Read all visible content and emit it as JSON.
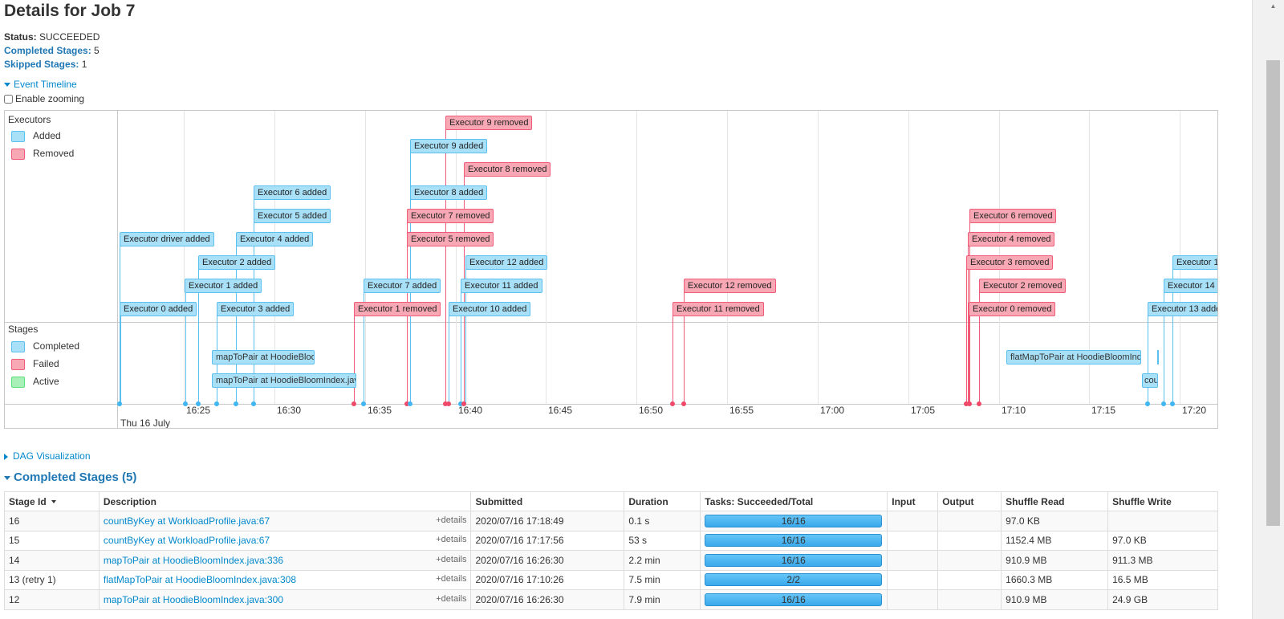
{
  "page_title": "Details for Job 7",
  "summary": {
    "status_label": "Status:",
    "status_value": "SUCCEEDED",
    "completed_label": "Completed Stages:",
    "completed_value": "5",
    "skipped_label": "Skipped Stages:",
    "skipped_value": "1"
  },
  "event_timeline_label": "Event Timeline",
  "enable_zooming_label": "Enable zooming",
  "timeline": {
    "executors_title": "Executors",
    "stages_title": "Stages",
    "executor_legend": [
      "Added",
      "Removed"
    ],
    "stage_legend": [
      "Completed",
      "Failed",
      "Active"
    ],
    "axis_ticks": [
      "16:25",
      "16:30",
      "16:35",
      "16:40",
      "16:45",
      "16:50",
      "16:55",
      "17:00",
      "17:05",
      "17:10",
      "17:15",
      "17:20"
    ],
    "date_label": "Thu 16 July",
    "executor_events": [
      "Executor 0 added",
      "Executor 1 added",
      "Executor 2 added",
      "Executor 3 added",
      "Executor 4 added",
      "Executor 5 added",
      "Executor 6 added",
      "Executor driver added",
      "Executor 7 added",
      "Executor 1 removed",
      "Executor 9 removed",
      "Executor 9 added",
      "Executor 8 removed",
      "Executor 8 added",
      "Executor 7 removed",
      "Executor 5 removed",
      "Executor 12 added",
      "Executor 11 added",
      "Executor 10 added",
      "Executor 12 removed",
      "Executor 11 removed",
      "Executor 6 removed",
      "Executor 4 removed",
      "Executor 3 removed",
      "Executor 2 removed",
      "Executor 0 removed",
      "Executor 1",
      "Executor 14 a",
      "Executor 13 added"
    ],
    "stage_events": [
      "mapToPair at HoodieBloom",
      "mapToPair at HoodieBloomIndex.java",
      "flatMapToPair at HoodieBloomInde",
      "cou"
    ]
  },
  "dag_label": "DAG Visualization",
  "completed_stages_title": "Completed Stages (5)",
  "table": {
    "headers": [
      "Stage Id",
      "Description",
      "Submitted",
      "Duration",
      "Tasks: Succeeded/Total",
      "Input",
      "Output",
      "Shuffle Read",
      "Shuffle Write"
    ],
    "details_label": "+details",
    "rows": [
      {
        "id": "16",
        "desc": "countByKey at WorkloadProfile.java:67",
        "submitted": "2020/07/16 17:18:49",
        "duration": "0.1 s",
        "tasks": "16/16",
        "tasks_fraction": 1.0,
        "input": "",
        "output": "",
        "shuffle_read": "97.0 KB",
        "shuffle_write": ""
      },
      {
        "id": "15",
        "desc": "countByKey at WorkloadProfile.java:67",
        "submitted": "2020/07/16 17:17:56",
        "duration": "53 s",
        "tasks": "16/16",
        "tasks_fraction": 1.0,
        "input": "",
        "output": "",
        "shuffle_read": "1152.4 MB",
        "shuffle_write": "97.0 KB"
      },
      {
        "id": "14",
        "desc": "mapToPair at HoodieBloomIndex.java:336",
        "submitted": "2020/07/16 16:26:30",
        "duration": "2.2 min",
        "tasks": "16/16",
        "tasks_fraction": 1.0,
        "input": "",
        "output": "",
        "shuffle_read": "910.9 MB",
        "shuffle_write": "911.3 MB"
      },
      {
        "id": "13 (retry 1)",
        "desc": "flatMapToPair at HoodieBloomIndex.java:308",
        "submitted": "2020/07/16 17:10:26",
        "duration": "7.5 min",
        "tasks": "2/2",
        "tasks_fraction": 1.0,
        "input": "",
        "output": "",
        "shuffle_read": "1660.3 MB",
        "shuffle_write": "16.5 MB"
      },
      {
        "id": "12",
        "desc": "mapToPair at HoodieBloomIndex.java:300",
        "submitted": "2020/07/16 16:26:30",
        "duration": "7.9 min",
        "tasks": "16/16",
        "tasks_fraction": 1.0,
        "input": "",
        "output": "",
        "shuffle_read": "910.9 MB",
        "shuffle_write": "24.9 GB"
      }
    ]
  }
}
